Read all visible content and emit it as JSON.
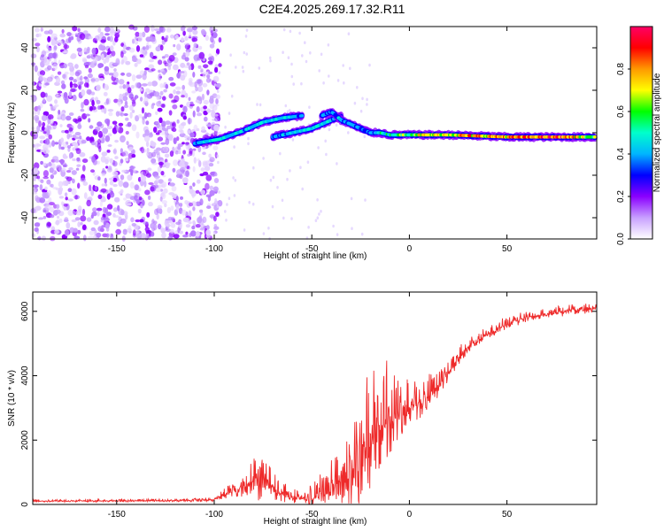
{
  "title": "C2E4.2025.269.17.32.R11",
  "chart_data": [
    {
      "type": "heatmap",
      "name": "spectrogram",
      "xlabel": "Height of straight line (km)",
      "ylabel": "Frequency (Hz)",
      "xlim": [
        -193,
        96
      ],
      "ylim": [
        -50,
        50
      ],
      "xticks": [
        -150,
        -100,
        -50,
        0,
        50
      ],
      "yticks": [
        -40,
        -20,
        0,
        20,
        40
      ],
      "colorbar": {
        "label": "Normalized spectral amplitude",
        "range": [
          0,
          1
        ],
        "ticks": [
          "0.0",
          "0.2",
          "0.4",
          "0.6",
          "0.8"
        ],
        "tick_values": [
          0,
          0.2,
          0.4,
          0.6,
          0.8
        ],
        "colors": [
          "#ffffff",
          "#c8a0ff",
          "#8a00ff",
          "#0000ff",
          "#00b4ff",
          "#00ffcc",
          "#00ff00",
          "#ffff00",
          "#ff9900",
          "#ff0000",
          "#ff0066"
        ]
      },
      "features": {
        "noise_region_x": [
          -193,
          -100
        ],
        "trace_segments": [
          {
            "x": [
              -110,
              -97,
              -85,
              -75,
              -65,
              -55
            ],
            "y": [
              -5,
              -3,
              1,
              5,
              7,
              8
            ],
            "amp": [
              0.45,
              0.5,
              0.45,
              0.5,
              0.45,
              0.4
            ]
          },
          {
            "x": [
              -70,
              -60,
              -50,
              -45,
              -40,
              -35
            ],
            "y": [
              -2,
              0,
              2,
              4,
              6,
              8
            ],
            "amp": [
              0.4,
              0.45,
              0.5,
              0.45,
              0.45,
              0.35
            ]
          },
          {
            "x": [
              -45,
              -40,
              -35,
              -30,
              -25,
              -20,
              -15,
              -10,
              0,
              20,
              50,
              80,
              95
            ],
            "y": [
              8,
              10,
              6,
              4,
              2,
              0,
              0,
              -1,
              -1,
              -1,
              -2,
              -2,
              -2
            ],
            "amp": [
              0.35,
              0.4,
              0.45,
              0.4,
              0.35,
              0.4,
              0.5,
              0.55,
              0.7,
              0.8,
              0.85,
              0.9,
              0.6
            ]
          }
        ]
      }
    },
    {
      "type": "line",
      "name": "snr",
      "xlabel": "Height of straight line (km)",
      "ylabel": "SNR (10 * v/v)",
      "xlim": [
        -193,
        96
      ],
      "ylim": [
        0,
        6600
      ],
      "xticks": [
        -150,
        -100,
        -50,
        0,
        50
      ],
      "yticks": [
        0,
        2000,
        4000,
        6000
      ],
      "color": "#ee2a2a",
      "envelope": {
        "x": [
          -193,
          -120,
          -100,
          -95,
          -90,
          -85,
          -80,
          -75,
          -72,
          -68,
          -60,
          -55,
          -50,
          -45,
          -40,
          -35,
          -30,
          -25,
          -22,
          -18,
          -15,
          -10,
          -5,
          0,
          5,
          10,
          15,
          20,
          25,
          30,
          40,
          50,
          60,
          70,
          80,
          96
        ],
        "base": [
          100,
          120,
          140,
          300,
          450,
          550,
          700,
          800,
          700,
          400,
          200,
          150,
          200,
          350,
          500,
          700,
          900,
          1300,
          1700,
          2000,
          2300,
          2600,
          2800,
          3000,
          3200,
          3400,
          3700,
          4100,
          4500,
          4900,
          5300,
          5600,
          5800,
          5900,
          6000,
          6100
        ],
        "amp": [
          50,
          60,
          80,
          200,
          300,
          500,
          800,
          1200,
          600,
          400,
          250,
          250,
          400,
          600,
          900,
          1200,
          1600,
          2200,
          2600,
          2600,
          2200,
          1600,
          1300,
          1100,
          900,
          700,
          500,
          400,
          350,
          300,
          250,
          220,
          200,
          200,
          200,
          200
        ]
      },
      "samples": 1400
    }
  ]
}
